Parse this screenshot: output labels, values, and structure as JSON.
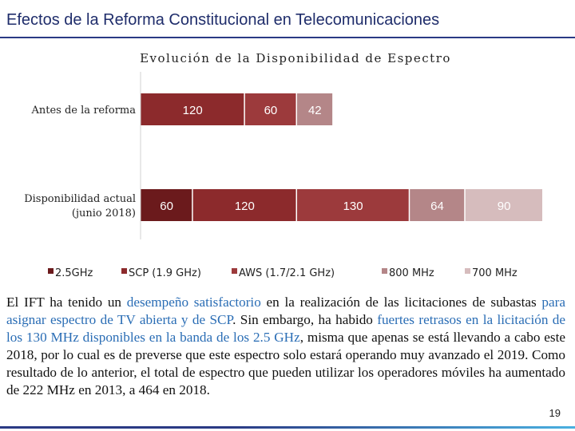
{
  "header": {
    "title": "Efectos de la Reforma Constitucional en Telecomunicaciones"
  },
  "chart_data": {
    "type": "bar",
    "orientation": "horizontal",
    "stacked": true,
    "title": "Evolución de la Disponibilidad de Espectro",
    "categories": [
      [
        "Antes de la reforma"
      ],
      [
        "Disponibilidad actual",
        "(junio 2018)"
      ]
    ],
    "series": [
      {
        "name": "2.5GHz",
        "color": "#6b1a1c",
        "values": [
          null,
          60
        ]
      },
      {
        "name": "SCP (1.9 GHz)",
        "color": "#8c2a2c",
        "values": [
          120,
          120
        ]
      },
      {
        "name": "AWS (1.7/2.1 GHz)",
        "color": "#9c3a3c",
        "values": [
          60,
          130
        ]
      },
      {
        "name": "800 MHz",
        "color": "#b48688",
        "values": [
          42,
          64
        ]
      },
      {
        "name": "700 MHz",
        "color": "#d6bcbd",
        "values": [
          null,
          90
        ]
      }
    ],
    "labels": [
      [
        "",
        "120",
        "60",
        "42",
        ""
      ],
      [
        "60",
        "120",
        "130",
        "64",
        "90"
      ]
    ],
    "legend_position": "bottom",
    "grid": false
  },
  "body_text": {
    "p1": "El IFT ha tenido un ",
    "h1": "desempeño satisfactorio",
    "p2": " en la realización de las licitaciones de subastas ",
    "h2": "para asignar espectro de TV abierta y de SCP",
    "p3": ". Sin embargo, ha habido ",
    "h3": "fuertes retrasos en la licitación de los 130 MHz disponibles en la banda de los 2.5 GHz",
    "p4": ", misma que apenas se está llevando a cabo este 2018, por lo cual es de preverse que este espectro solo estará operando muy avanzado el 2019. Como resultado de lo anterior, el total de espectro que pueden utilizar los operadores móviles ha aumentado de 222 MHz en 2013, a 464 en 2018."
  },
  "page_number": "19"
}
